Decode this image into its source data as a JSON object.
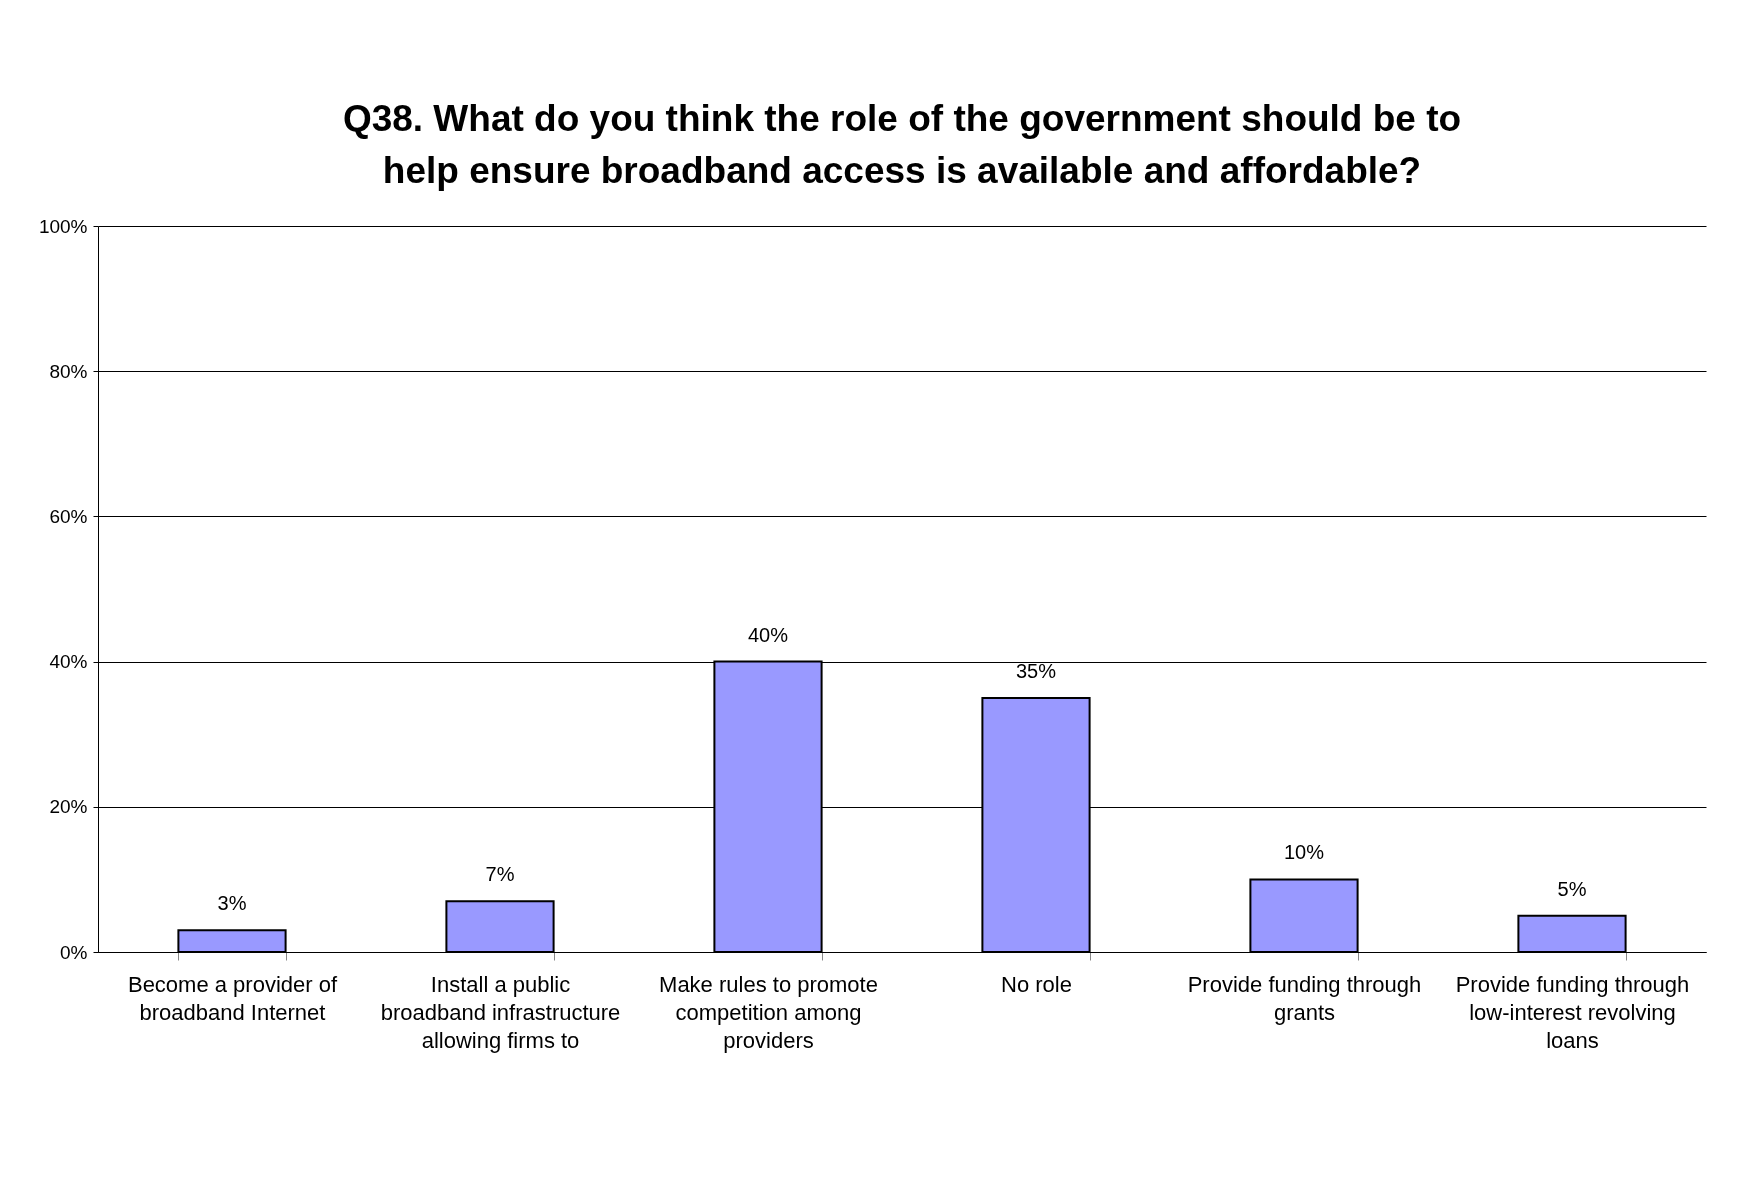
{
  "chart_data": {
    "type": "bar",
    "title": "Q38.  What do you think the role of the government should be to\nhelp ensure broadband access is available and affordable?",
    "categories": [
      "Become a provider of broadband Internet",
      "Install a public broadband infrastructure allowing firms to",
      "Make rules to promote competition among providers",
      "No role",
      "Provide funding through grants",
      "Provide funding through low-interest revolving loans"
    ],
    "values": [
      3,
      7,
      40,
      35,
      10,
      5
    ],
    "color": "#9999ff",
    "value_labels": [
      "3%",
      "7%",
      "40%",
      "35%",
      "10%",
      "5%"
    ],
    "ylim": [
      0,
      100
    ],
    "yticks": [
      {
        "value": 0,
        "label": "0%"
      },
      {
        "value": 20,
        "label": "20%"
      },
      {
        "value": 40,
        "label": "40%"
      },
      {
        "value": 60,
        "label": "60%"
      },
      {
        "value": 80,
        "label": "80%"
      },
      {
        "value": 100,
        "label": "100%"
      }
    ],
    "grid": "y"
  }
}
